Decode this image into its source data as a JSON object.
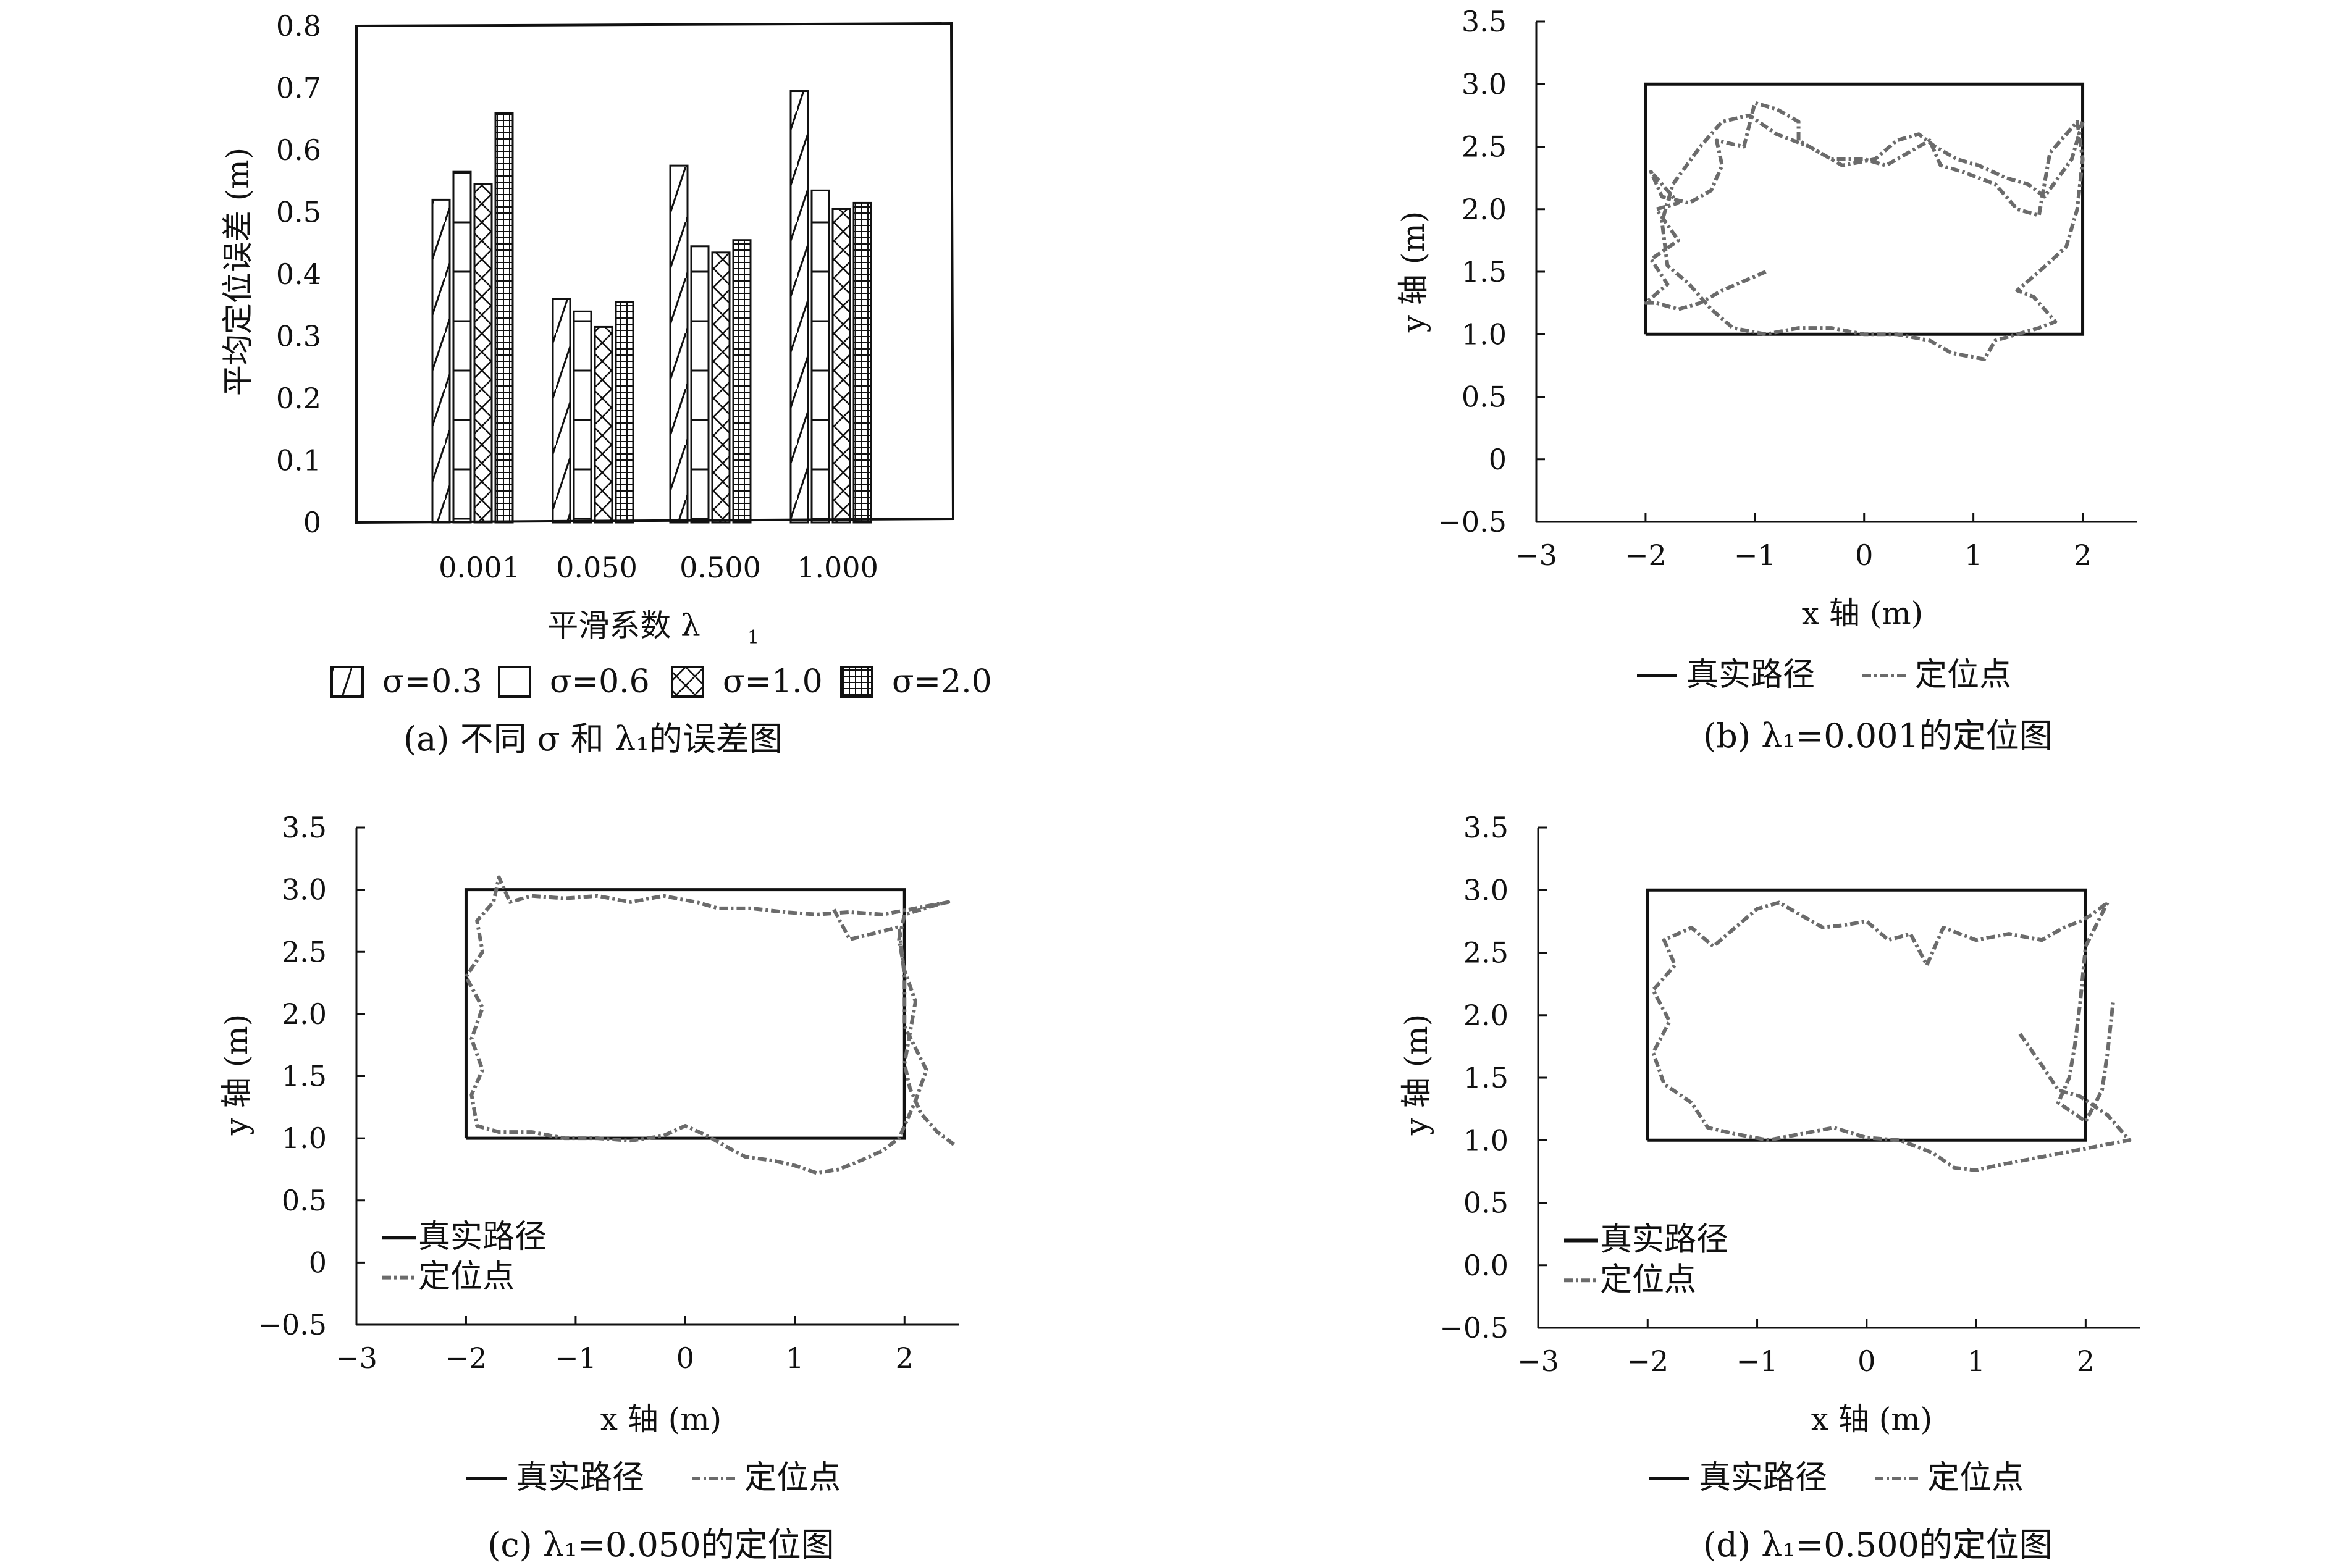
{
  "chart_data": [
    {
      "type": "bar",
      "categories": [
        "0.001",
        "0.050",
        "0.500",
        "1.000"
      ],
      "series": [
        {
          "name": "σ=0.3",
          "values": [
            0.52,
            0.36,
            0.575,
            0.695
          ]
        },
        {
          "name": "σ=0.6",
          "values": [
            0.565,
            0.34,
            0.445,
            0.535
          ]
        },
        {
          "name": "σ=1.0",
          "values": [
            0.545,
            0.315,
            0.435,
            0.505
          ]
        },
        {
          "name": "σ=2.0",
          "values": [
            0.66,
            0.355,
            0.455,
            0.515
          ]
        }
      ],
      "xlabel": "平滑系数 λ",
      "xlabel_sub": "1",
      "ylabel": "平均定位误差 (m)",
      "ylim": [
        0,
        0.8
      ],
      "yticks": [
        "0",
        "0.1",
        "0.2",
        "0.3",
        "0.4",
        "0.5",
        "0.6",
        "0.7",
        "0.8"
      ],
      "caption": "(a) 不同 σ 和 λ₁的误差图",
      "legend": [
        "σ=0.3",
        "σ=0.6",
        "σ=1.0",
        "σ=2.0"
      ],
      "legend_position": "bottom"
    },
    {
      "type": "line",
      "xlabel": "x 轴 (m)",
      "ylabel": "y 轴 (m)",
      "xlim": [
        -3,
        2.5
      ],
      "ylim": [
        -0.5,
        3.5
      ],
      "xticks": [
        "−3",
        "−2",
        "−1",
        "0",
        "1",
        "2"
      ],
      "yticks": [
        "−0.5",
        "0",
        "0.5",
        "1.0",
        "1.5",
        "2.0",
        "2.5",
        "3.0",
        "3.5"
      ],
      "legend": [
        "真实路径",
        "定位点"
      ],
      "legend_position": "bottom",
      "caption": "(b) λ₁=0.001的定位图",
      "series": [
        {
          "name": "真实路径",
          "x": [
            -2,
            2,
            2,
            -2,
            -2
          ],
          "y": [
            1,
            1,
            3,
            3,
            1
          ]
        },
        {
          "name": "定位点",
          "points": [
            [
              -0.9,
              1.5
            ],
            [
              -1.3,
              1.35
            ],
            [
              -1.5,
              1.25
            ],
            [
              -1.7,
              1.2
            ],
            [
              -1.9,
              1.25
            ],
            [
              -2.0,
              1.25
            ],
            [
              -1.8,
              1.4
            ],
            [
              -1.95,
              1.6
            ],
            [
              -1.7,
              1.75
            ],
            [
              -1.9,
              2.0
            ],
            [
              -1.7,
              2.05
            ],
            [
              -1.95,
              2.3
            ],
            [
              -1.85,
              2.1
            ],
            [
              -1.6,
              2.05
            ],
            [
              -1.4,
              2.15
            ],
            [
              -1.3,
              2.35
            ],
            [
              -1.35,
              2.55
            ],
            [
              -1.1,
              2.5
            ],
            [
              -1.0,
              2.85
            ],
            [
              -0.8,
              2.8
            ],
            [
              -0.6,
              2.7
            ],
            [
              -0.6,
              2.55
            ],
            [
              -0.4,
              2.45
            ],
            [
              -0.3,
              2.4
            ],
            [
              0.0,
              2.4
            ],
            [
              0.2,
              2.35
            ],
            [
              0.4,
              2.45
            ],
            [
              0.6,
              2.55
            ],
            [
              0.7,
              2.35
            ],
            [
              0.9,
              2.3
            ],
            [
              1.2,
              2.2
            ],
            [
              1.4,
              2.0
            ],
            [
              1.6,
              1.95
            ],
            [
              1.7,
              2.45
            ],
            [
              1.85,
              2.6
            ],
            [
              1.95,
              2.7
            ],
            [
              2.0,
              2.4
            ],
            [
              1.95,
              2.0
            ],
            [
              1.85,
              1.7
            ],
            [
              1.6,
              1.5
            ],
            [
              1.4,
              1.35
            ],
            [
              1.55,
              1.3
            ],
            [
              1.75,
              1.1
            ],
            [
              1.6,
              1.05
            ],
            [
              1.4,
              1.0
            ],
            [
              1.2,
              0.95
            ],
            [
              1.1,
              0.8
            ],
            [
              0.8,
              0.85
            ],
            [
              0.6,
              0.95
            ],
            [
              0.3,
              1.0
            ],
            [
              0.0,
              1.0
            ],
            [
              -0.3,
              1.05
            ],
            [
              -0.6,
              1.05
            ],
            [
              -0.9,
              1.0
            ],
            [
              -1.2,
              1.05
            ],
            [
              -1.4,
              1.2
            ],
            [
              -1.6,
              1.4
            ],
            [
              -1.8,
              1.55
            ],
            [
              -1.85,
              1.9
            ],
            [
              -1.75,
              2.2
            ],
            [
              -1.5,
              2.5
            ],
            [
              -1.3,
              2.7
            ],
            [
              -1.05,
              2.75
            ],
            [
              -0.8,
              2.6
            ],
            [
              -0.5,
              2.5
            ],
            [
              -0.2,
              2.35
            ],
            [
              0.1,
              2.4
            ],
            [
              0.3,
              2.55
            ],
            [
              0.5,
              2.6
            ],
            [
              0.65,
              2.5
            ],
            [
              0.85,
              2.4
            ],
            [
              1.05,
              2.35
            ],
            [
              1.3,
              2.25
            ],
            [
              1.5,
              2.2
            ],
            [
              1.65,
              2.1
            ],
            [
              1.9,
              2.4
            ],
            [
              2.0,
              2.7
            ]
          ]
        }
      ]
    },
    {
      "type": "line",
      "xlabel": "x 轴 (m)",
      "ylabel": "y 轴 (m)",
      "xlim": [
        -3,
        2.5
      ],
      "ylim": [
        -0.5,
        3.5
      ],
      "xticks": [
        "−3",
        "−2",
        "−1",
        "0",
        "1",
        "2"
      ],
      "yticks": [
        "−0.5",
        "0",
        "0.5",
        "1.0",
        "1.5",
        "2.0",
        "2.5",
        "3.0",
        "3.5"
      ],
      "legend": [
        "真实路径",
        "定位点"
      ],
      "legend_position": "lower left",
      "caption": "(c) λ₁=0.050的定位图",
      "series": [
        {
          "name": "真实路径",
          "x": [
            -2,
            2,
            2,
            -2,
            -2
          ],
          "y": [
            1,
            1,
            3,
            3,
            1
          ]
        },
        {
          "name": "定位点",
          "points": [
            [
              2.45,
              0.95
            ],
            [
              2.3,
              1.05
            ],
            [
              2.15,
              1.2
            ],
            [
              2.05,
              1.4
            ],
            [
              2.0,
              1.6
            ],
            [
              2.05,
              1.85
            ],
            [
              2.1,
              2.1
            ],
            [
              2.0,
              2.35
            ],
            [
              1.95,
              2.6
            ],
            [
              2.0,
              2.8
            ],
            [
              2.3,
              2.88
            ],
            [
              2.4,
              2.9
            ],
            [
              2.1,
              2.85
            ],
            [
              1.8,
              2.8
            ],
            [
              1.5,
              2.82
            ],
            [
              1.2,
              2.8
            ],
            [
              0.9,
              2.82
            ],
            [
              0.6,
              2.85
            ],
            [
              0.3,
              2.85
            ],
            [
              0.1,
              2.9
            ],
            [
              -0.2,
              2.95
            ],
            [
              -0.5,
              2.9
            ],
            [
              -0.8,
              2.95
            ],
            [
              -1.1,
              2.93
            ],
            [
              -1.4,
              2.95
            ],
            [
              -1.6,
              2.9
            ],
            [
              -1.7,
              3.1
            ],
            [
              -1.75,
              2.9
            ],
            [
              -1.9,
              2.75
            ],
            [
              -1.85,
              2.5
            ],
            [
              -2.0,
              2.3
            ],
            [
              -1.85,
              2.05
            ],
            [
              -1.95,
              1.8
            ],
            [
              -1.85,
              1.55
            ],
            [
              -1.95,
              1.35
            ],
            [
              -1.9,
              1.1
            ],
            [
              -1.7,
              1.05
            ],
            [
              -1.4,
              1.05
            ],
            [
              -1.1,
              1.0
            ],
            [
              -0.8,
              1.0
            ],
            [
              -0.5,
              0.98
            ],
            [
              -0.2,
              1.02
            ],
            [
              0.0,
              1.1
            ],
            [
              0.2,
              1.02
            ],
            [
              0.4,
              0.92
            ],
            [
              0.55,
              0.85
            ],
            [
              0.8,
              0.82
            ],
            [
              1.0,
              0.78
            ],
            [
              1.2,
              0.72
            ],
            [
              1.4,
              0.75
            ],
            [
              1.6,
              0.82
            ],
            [
              1.8,
              0.9
            ],
            [
              1.95,
              1.0
            ],
            [
              2.1,
              1.3
            ],
            [
              2.2,
              1.55
            ],
            [
              2.0,
              1.9
            ],
            [
              2.0,
              2.3
            ],
            [
              1.95,
              2.7
            ],
            [
              1.5,
              2.6
            ],
            [
              1.35,
              2.85
            ]
          ]
        }
      ]
    },
    {
      "type": "line",
      "xlabel": "x 轴 (m)",
      "ylabel": "y 轴 (m)",
      "xlim": [
        -3,
        2.5
      ],
      "ylim": [
        -0.5,
        3.5
      ],
      "xticks": [
        "−3",
        "−2",
        "−1",
        "0",
        "1",
        "2"
      ],
      "yticks": [
        "−0.5",
        "0.0",
        "0.5",
        "1.0",
        "1.5",
        "2.0",
        "2.5",
        "3.0",
        "3.5"
      ],
      "legend": [
        "真实路径",
        "定位点"
      ],
      "legend_position": "lower left",
      "caption": "(d) λ₁=0.500的定位图",
      "series": [
        {
          "name": "真实路径",
          "x": [
            -2,
            2,
            2,
            -2,
            -2
          ],
          "y": [
            1,
            1,
            3,
            3,
            1
          ]
        },
        {
          "name": "定位点",
          "points": [
            [
              1.4,
              1.85
            ],
            [
              1.6,
              1.6
            ],
            [
              1.75,
              1.4
            ],
            [
              1.95,
              1.35
            ],
            [
              2.2,
              1.2
            ],
            [
              2.4,
              1.0
            ],
            [
              2.1,
              0.95
            ],
            [
              1.8,
              0.9
            ],
            [
              1.5,
              0.85
            ],
            [
              1.2,
              0.8
            ],
            [
              1.0,
              0.76
            ],
            [
              0.8,
              0.78
            ],
            [
              0.6,
              0.9
            ],
            [
              0.3,
              1.0
            ],
            [
              0.0,
              1.02
            ],
            [
              -0.3,
              1.1
            ],
            [
              -0.6,
              1.05
            ],
            [
              -0.9,
              1.0
            ],
            [
              -1.2,
              1.05
            ],
            [
              -1.45,
              1.1
            ],
            [
              -1.6,
              1.3
            ],
            [
              -1.85,
              1.45
            ],
            [
              -1.95,
              1.7
            ],
            [
              -1.8,
              1.95
            ],
            [
              -1.95,
              2.2
            ],
            [
              -1.75,
              2.4
            ],
            [
              -1.85,
              2.6
            ],
            [
              -1.6,
              2.7
            ],
            [
              -1.4,
              2.55
            ],
            [
              -1.2,
              2.7
            ],
            [
              -1.0,
              2.85
            ],
            [
              -0.8,
              2.9
            ],
            [
              -0.6,
              2.8
            ],
            [
              -0.4,
              2.7
            ],
            [
              -0.2,
              2.72
            ],
            [
              0.0,
              2.75
            ],
            [
              0.2,
              2.6
            ],
            [
              0.4,
              2.65
            ],
            [
              0.55,
              2.4
            ],
            [
              0.7,
              2.7
            ],
            [
              1.0,
              2.6
            ],
            [
              1.3,
              2.65
            ],
            [
              1.6,
              2.6
            ],
            [
              1.8,
              2.7
            ],
            [
              1.95,
              2.75
            ],
            [
              2.05,
              2.8
            ],
            [
              2.2,
              2.9
            ],
            [
              2.0,
              2.55
            ],
            [
              1.95,
              2.1
            ],
            [
              1.9,
              1.75
            ],
            [
              1.85,
              1.5
            ],
            [
              1.75,
              1.3
            ],
            [
              2.0,
              1.15
            ],
            [
              2.15,
              1.4
            ],
            [
              2.2,
              1.7
            ],
            [
              2.25,
              2.1
            ]
          ]
        }
      ]
    }
  ]
}
